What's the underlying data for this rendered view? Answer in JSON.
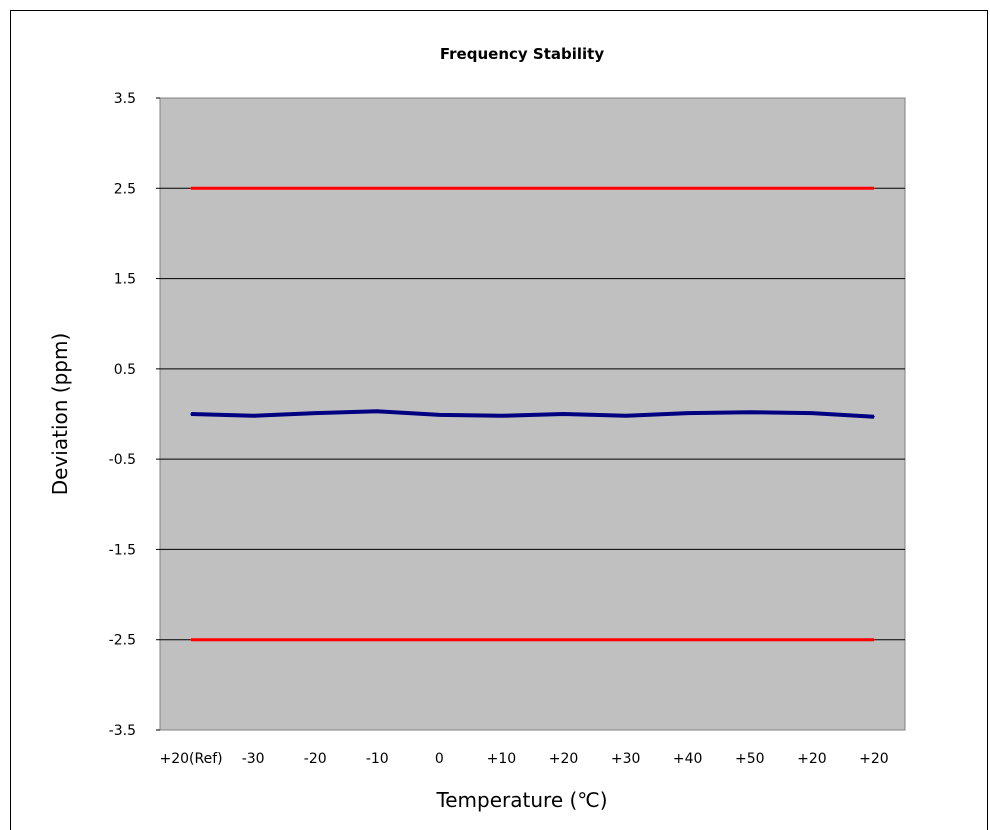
{
  "chart_data": {
    "type": "line",
    "title": "Frequency Stability",
    "xlabel": "Temperature (℃)",
    "ylabel": "Deviation (ppm)",
    "categories": [
      "+20(Ref)",
      "-30",
      "-20",
      "-10",
      "0",
      "+10",
      "+20",
      "+30",
      "+40",
      "+50",
      "+20",
      "+20"
    ],
    "yticks": [
      "3.5",
      "2.5",
      "1.5",
      "0.5",
      "-0.5",
      "-1.5",
      "-2.5",
      "-3.5"
    ],
    "ylim": [
      -3.5,
      3.5
    ],
    "grid": true,
    "series": [
      {
        "values": [
          0.0,
          -0.02,
          0.01,
          0.03,
          -0.01,
          -0.02,
          0.0,
          -0.02,
          0.01,
          0.02,
          0.01,
          -0.03
        ],
        "color": "#000080"
      },
      {
        "values": [
          2.5,
          2.5,
          2.5,
          2.5,
          2.5,
          2.5,
          2.5,
          2.5,
          2.5,
          2.5,
          2.5,
          2.5
        ],
        "color": "#ff0000"
      },
      {
        "values": [
          -2.5,
          -2.5,
          -2.5,
          -2.5,
          -2.5,
          -2.5,
          -2.5,
          -2.5,
          -2.5,
          -2.5,
          -2.5,
          -2.5
        ],
        "color": "#ff0000"
      }
    ],
    "plot_background": "#c0c0c0"
  }
}
